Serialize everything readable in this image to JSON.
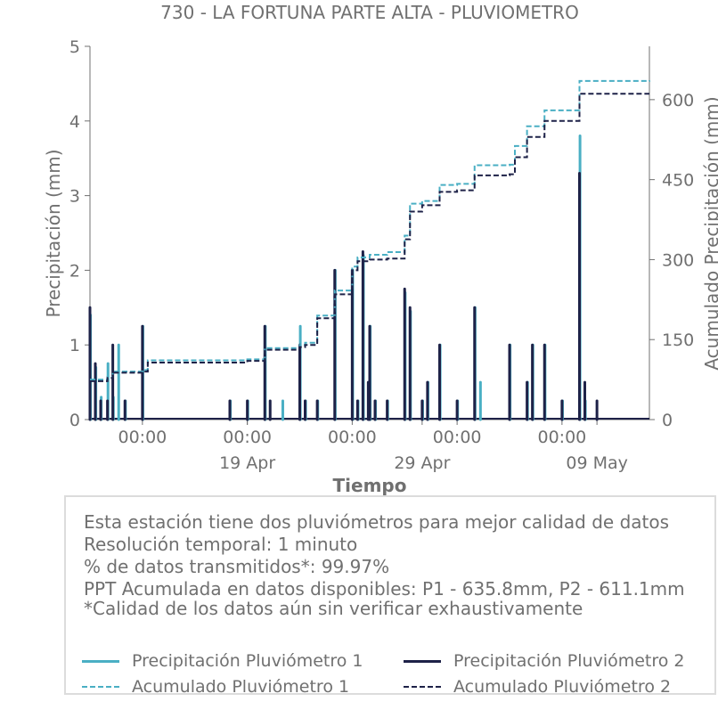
{
  "chart_data": {
    "type": "line",
    "title": "730 - LA FORTUNA PARTE ALTA - PLUVIOMETRO",
    "xlabel": "Tiempo",
    "ylabel_left": "Precipitación (mm)",
    "ylabel_right": "Acumulado Precipitación (mm)",
    "ylim_left": [
      0,
      5
    ],
    "ylim_right": [
      0,
      700
    ],
    "yticks_left": [
      "0",
      "1",
      "2",
      "3",
      "4",
      "5"
    ],
    "yticks_right": [
      "0",
      "150",
      "300",
      "450",
      "600"
    ],
    "x_range_days": [
      "2025-04-10",
      "2025-05-12"
    ],
    "x_time_ticks": [
      {
        "date": "2025-04-13",
        "label": "00:00"
      },
      {
        "date": "2025-04-19",
        "label": "00:00"
      },
      {
        "date": "2025-04-25",
        "label": "00:00"
      },
      {
        "date": "2025-05-01",
        "label": "00:00"
      },
      {
        "date": "2025-05-07",
        "label": "00:00"
      }
    ],
    "x_date_ticks": [
      {
        "date": "2025-04-19",
        "label": "19 Apr"
      },
      {
        "date": "2025-04-29",
        "label": "29 Apr"
      },
      {
        "date": "2025-05-09",
        "label": "09 May"
      }
    ],
    "series": [
      {
        "name": "Precipitación Pluviómetro 1",
        "axis": "left",
        "style": "solid",
        "color": "#4aafc4",
        "points": [
          [
            "2025-04-10",
            1.4
          ],
          [
            "2025-04-10",
            0.7
          ],
          [
            "2025-04-10",
            0.3
          ],
          [
            "2025-04-11",
            0.75
          ],
          [
            "2025-04-11",
            0.3
          ],
          [
            "2025-04-11",
            1.0
          ],
          [
            "2025-04-12",
            0.25
          ],
          [
            "2025-04-13",
            1.25
          ],
          [
            "2025-04-18",
            0.25
          ],
          [
            "2025-04-19",
            0.25
          ],
          [
            "2025-04-20",
            1.25
          ],
          [
            "2025-04-21",
            0.25
          ],
          [
            "2025-04-22",
            1.25
          ],
          [
            "2025-04-22",
            0.25
          ],
          [
            "2025-04-23",
            0.25
          ],
          [
            "2025-04-24",
            2.0
          ],
          [
            "2025-04-25",
            2.0
          ],
          [
            "2025-04-25",
            0.25
          ],
          [
            "2025-04-25",
            2.2
          ],
          [
            "2025-04-25",
            0.5
          ],
          [
            "2025-04-26",
            1.25
          ],
          [
            "2025-04-26",
            0.25
          ],
          [
            "2025-04-27",
            0.25
          ],
          [
            "2025-04-28",
            1.7
          ],
          [
            "2025-04-28",
            1.45
          ],
          [
            "2025-04-29",
            0.25
          ],
          [
            "2025-04-29",
            0.5
          ],
          [
            "2025-04-30",
            1.0
          ],
          [
            "2025-05-01",
            0.25
          ],
          [
            "2025-05-02",
            1.5
          ],
          [
            "2025-05-02",
            0.5
          ],
          [
            "2025-05-04",
            1.0
          ],
          [
            "2025-05-05",
            0.5
          ],
          [
            "2025-05-05",
            1.0
          ],
          [
            "2025-05-06",
            1.0
          ],
          [
            "2025-05-07",
            0.25
          ],
          [
            "2025-05-08",
            3.8
          ],
          [
            "2025-05-08",
            0.25
          ]
        ]
      },
      {
        "name": "Precipitación Pluviómetro 2",
        "axis": "left",
        "style": "solid",
        "color": "#1e2248",
        "points": [
          [
            "2025-04-10",
            1.5
          ],
          [
            "2025-04-10",
            0.75
          ],
          [
            "2025-04-10",
            0.25
          ],
          [
            "2025-04-11",
            0.25
          ],
          [
            "2025-04-11",
            1.0
          ],
          [
            "2025-04-12",
            0.25
          ],
          [
            "2025-04-13",
            1.25
          ],
          [
            "2025-04-18",
            0.25
          ],
          [
            "2025-04-19",
            0.25
          ],
          [
            "2025-04-20",
            1.25
          ],
          [
            "2025-04-20",
            0.25
          ],
          [
            "2025-04-22",
            1.0
          ],
          [
            "2025-04-22",
            0.25
          ],
          [
            "2025-04-23",
            0.25
          ],
          [
            "2025-04-24",
            2.0
          ],
          [
            "2025-04-25",
            2.0
          ],
          [
            "2025-04-25",
            0.25
          ],
          [
            "2025-04-25",
            2.25
          ],
          [
            "2025-04-25",
            0.5
          ],
          [
            "2025-04-26",
            1.25
          ],
          [
            "2025-04-26",
            0.25
          ],
          [
            "2025-04-27",
            0.25
          ],
          [
            "2025-04-28",
            1.75
          ],
          [
            "2025-04-28",
            1.5
          ],
          [
            "2025-04-29",
            0.25
          ],
          [
            "2025-04-29",
            0.5
          ],
          [
            "2025-04-30",
            1.0
          ],
          [
            "2025-05-01",
            0.25
          ],
          [
            "2025-05-02",
            1.5
          ],
          [
            "2025-05-04",
            1.0
          ],
          [
            "2025-05-05",
            0.5
          ],
          [
            "2025-05-05",
            1.0
          ],
          [
            "2025-05-06",
            1.0
          ],
          [
            "2025-05-07",
            0.25
          ],
          [
            "2025-05-08",
            3.3
          ],
          [
            "2025-05-08",
            0.5
          ],
          [
            "2025-05-09",
            0.25
          ]
        ]
      },
      {
        "name": "Acumulado Pluviómetro 1",
        "axis": "right",
        "style": "dashed",
        "color": "#4aafc4",
        "steps": [
          [
            "2025-04-10",
            75
          ],
          [
            "2025-04-11",
            80
          ],
          [
            "2025-04-11",
            90
          ],
          [
            "2025-04-13",
            93
          ],
          [
            "2025-04-13",
            111
          ],
          [
            "2025-04-19",
            113
          ],
          [
            "2025-04-20",
            134
          ],
          [
            "2025-04-22",
            140
          ],
          [
            "2025-04-22",
            144
          ],
          [
            "2025-04-23",
            195
          ],
          [
            "2025-04-24",
            242
          ],
          [
            "2025-04-25",
            287
          ],
          [
            "2025-04-25",
            304
          ],
          [
            "2025-04-26",
            309
          ],
          [
            "2025-04-27",
            314
          ],
          [
            "2025-04-28",
            345
          ],
          [
            "2025-04-28",
            405
          ],
          [
            "2025-04-29",
            410
          ],
          [
            "2025-04-30",
            440
          ],
          [
            "2025-05-01",
            442
          ],
          [
            "2025-05-02",
            477
          ],
          [
            "2025-05-04",
            478
          ],
          [
            "2025-05-04",
            513
          ],
          [
            "2025-05-05",
            550
          ],
          [
            "2025-05-06",
            580
          ],
          [
            "2025-05-08",
            635
          ],
          [
            "2025-05-12",
            636
          ]
        ]
      },
      {
        "name": "Acumulado Pluviómetro 2",
        "axis": "right",
        "style": "dashed",
        "color": "#1e2248",
        "steps": [
          [
            "2025-04-10",
            72
          ],
          [
            "2025-04-11",
            78
          ],
          [
            "2025-04-11",
            88
          ],
          [
            "2025-04-13",
            90
          ],
          [
            "2025-04-13",
            107
          ],
          [
            "2025-04-19",
            110
          ],
          [
            "2025-04-20",
            131
          ],
          [
            "2025-04-22",
            136
          ],
          [
            "2025-04-22",
            140
          ],
          [
            "2025-04-23",
            190
          ],
          [
            "2025-04-24",
            235
          ],
          [
            "2025-04-25",
            280
          ],
          [
            "2025-04-25",
            297
          ],
          [
            "2025-04-26",
            300
          ],
          [
            "2025-04-27",
            302
          ],
          [
            "2025-04-28",
            338
          ],
          [
            "2025-04-28",
            390
          ],
          [
            "2025-04-29",
            402
          ],
          [
            "2025-04-30",
            427
          ],
          [
            "2025-05-01",
            430
          ],
          [
            "2025-05-02",
            458
          ],
          [
            "2025-05-04",
            460
          ],
          [
            "2025-05-04",
            492
          ],
          [
            "2025-05-05",
            530
          ],
          [
            "2025-05-06",
            560
          ],
          [
            "2025-05-08",
            611
          ],
          [
            "2025-05-12",
            611
          ]
        ]
      }
    ]
  },
  "info": {
    "lines": [
      "Esta estación tiene dos pluviómetros para mejor calidad de datos",
      "Resolución temporal: 1 minuto",
      "% de datos transmitidos*: 99.97%",
      "PPT Acumulada en datos disponibles: P1 - 635.8mm, P2 - 611.1mm",
      "*Calidad de los datos aún sin verificar exhaustivamente"
    ]
  },
  "legend": {
    "items": [
      {
        "label": "Precipitación Pluviómetro 1",
        "color": "#4aafc4",
        "style": "solid"
      },
      {
        "label": "Precipitación Pluviómetro 2",
        "color": "#1e2248",
        "style": "solid"
      },
      {
        "label": "Acumulado Pluviómetro 1",
        "color": "#4aafc4",
        "style": "dashed"
      },
      {
        "label": "Acumulado Pluviómetro 2",
        "color": "#1e2248",
        "style": "dashed"
      }
    ]
  }
}
